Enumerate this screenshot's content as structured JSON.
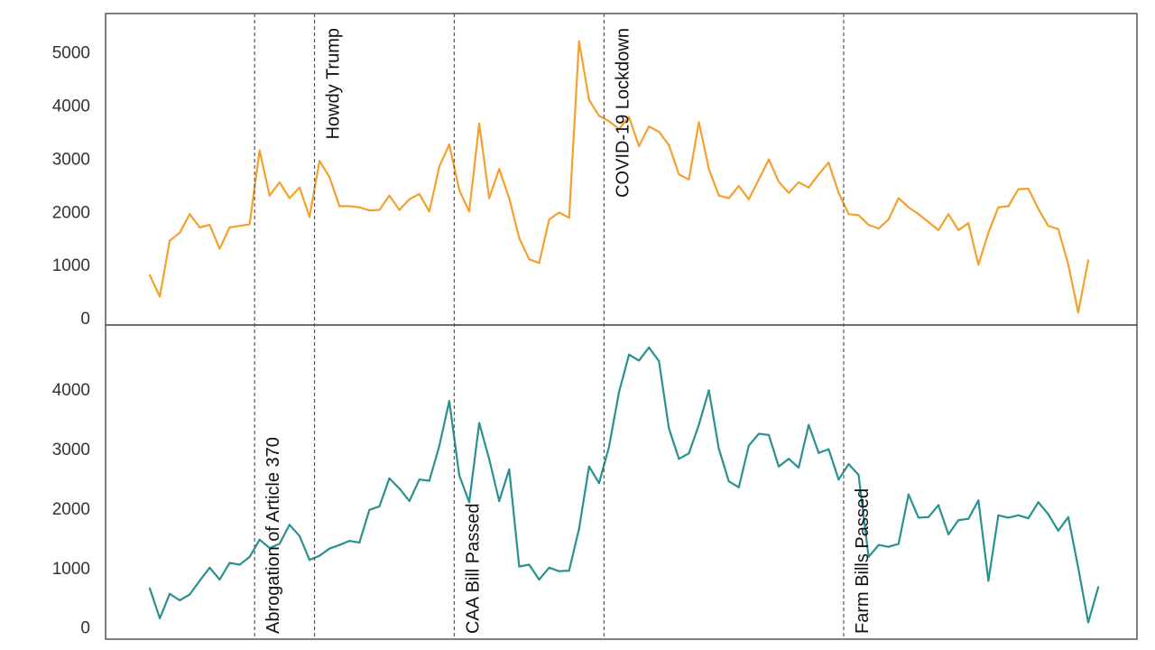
{
  "chart_data": [
    {
      "type": "line",
      "xlabel": "",
      "ylabel": "",
      "ylim": [
        0,
        5300
      ],
      "yticks": [
        0,
        1000,
        2000,
        3000,
        4000,
        5000
      ],
      "grid": false,
      "color": "#f5a02c",
      "values": [
        800,
        400,
        1450,
        1600,
        1950,
        1700,
        1750,
        1300,
        1700,
        1730,
        1760,
        3150,
        2300,
        2550,
        2250,
        2450,
        1900,
        2950,
        2650,
        2100,
        2100,
        2080,
        2020,
        2030,
        2300,
        2030,
        2230,
        2330,
        2000,
        2850,
        3260,
        2400,
        2000,
        3650,
        2250,
        2800,
        2250,
        1500,
        1100,
        1030,
        1850,
        1980,
        1880,
        5200,
        4100,
        3800,
        3700,
        3550,
        3780,
        3230,
        3600,
        3500,
        3250,
        2700,
        2600,
        3680,
        2800,
        2300,
        2250,
        2480,
        2230,
        2600,
        2980,
        2560,
        2350,
        2550,
        2450,
        2700,
        2920,
        2350,
        1950,
        1930,
        1750,
        1680,
        1850,
        2250,
        2080,
        1950,
        1800,
        1650,
        1950,
        1650,
        1780,
        1000,
        1600,
        2080,
        2100,
        2420,
        2430,
        2050,
        1730,
        1670,
        1000,
        100,
        1080
      ]
    },
    {
      "type": "line",
      "xlabel": "",
      "ylabel": "",
      "ylim": [
        -50,
        4850
      ],
      "yticks": [
        0,
        1000,
        2000,
        3000,
        4000
      ],
      "grid": false,
      "color": "#2a9090",
      "values": [
        650,
        150,
        560,
        450,
        550,
        780,
        1000,
        800,
        1080,
        1050,
        1180,
        1470,
        1330,
        1400,
        1720,
        1530,
        1130,
        1200,
        1320,
        1380,
        1450,
        1420,
        1970,
        2030,
        2500,
        2330,
        2120,
        2480,
        2460,
        3050,
        3800,
        2550,
        2100,
        3430,
        2820,
        2120,
        2650,
        1020,
        1050,
        800,
        1000,
        940,
        950,
        1650,
        2700,
        2420,
        3030,
        3950,
        4580,
        4480,
        4700,
        4470,
        3340,
        2830,
        2920,
        3400,
        3980,
        3000,
        2450,
        2350,
        3050,
        3250,
        3230,
        2700,
        2830,
        2680,
        3400,
        2930,
        2990,
        2480,
        2740,
        2560,
        1180,
        1380,
        1350,
        1400,
        2230,
        1840,
        1850,
        2050,
        1560,
        1800,
        1820,
        2130,
        780,
        1880,
        1840,
        1880,
        1830,
        2100,
        1900,
        1620,
        1850,
        1000,
        80,
        670
      ]
    }
  ],
  "annotations": [
    {
      "label": "Abrogation of Article 370",
      "index": 10.5,
      "panel": "bottom"
    },
    {
      "label": "Howdy Trump",
      "index": 16.5,
      "panel": "top"
    },
    {
      "label": "CAA Bill Passed",
      "index": 30.5,
      "panel": "bottom"
    },
    {
      "label": "COVID-19 Lockdown",
      "index": 45.5,
      "panel": "top"
    },
    {
      "label": "Farm Bills Passed",
      "index": 69.5,
      "panel": "bottom"
    }
  ]
}
